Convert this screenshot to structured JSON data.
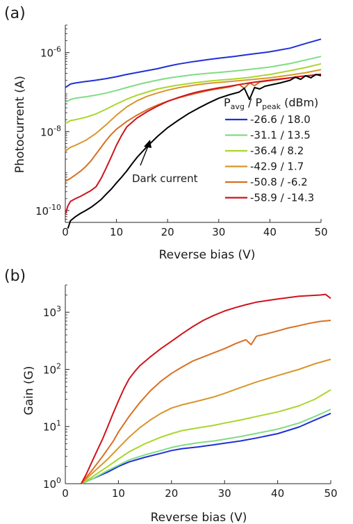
{
  "chart_data": [
    {
      "panel_label": "(a)",
      "type": "line",
      "xlabel": "Reverse bias (V)",
      "ylabel": "Photocurrent (A)",
      "xlim": [
        0,
        50
      ],
      "ylim": [
        5e-11,
        5e-06
      ],
      "yscale": "log",
      "x_ticks": [
        "0",
        "10",
        "20",
        "30",
        "40",
        "50"
      ],
      "y_ticks": [
        {
          "value": 1e-10,
          "base": "10",
          "exp": "-10"
        },
        {
          "value": 1e-08,
          "base": "10",
          "exp": "-8"
        },
        {
          "value": 1e-06,
          "base": "10",
          "exp": "-6"
        }
      ],
      "grid": false,
      "legend": {
        "position": "right",
        "title_main": "P",
        "title_sub1": "avg",
        "title_mid": " / P",
        "title_sub2": "peak",
        "title_unit": " (dBm)"
      },
      "series": [
        {
          "name": "-26.6 / 18.0",
          "color": "#1f2fd6",
          "x": [
            0,
            1,
            2,
            4,
            6,
            8,
            10,
            12,
            15,
            18,
            20,
            22,
            25,
            28,
            30,
            33,
            36,
            40,
            44,
            47,
            50
          ],
          "y": [
            1.3e-07,
            1.6e-07,
            1.7e-07,
            1.85e-07,
            2e-07,
            2.2e-07,
            2.45e-07,
            2.8e-07,
            3.3e-07,
            3.9e-07,
            4.5e-07,
            5.1e-07,
            5.9e-07,
            6.7e-07,
            7.2e-07,
            8e-07,
            9e-07,
            1.05e-06,
            1.3e-06,
            1.7e-06,
            2.2e-06
          ]
        },
        {
          "name": "-31.1 / 13.5",
          "color": "#7fdc84",
          "x": [
            0,
            1,
            2,
            4,
            6,
            8,
            10,
            12,
            15,
            18,
            20,
            22,
            25,
            28,
            30,
            33,
            36,
            40,
            44,
            47,
            50
          ],
          "y": [
            5.5e-08,
            6.5e-08,
            7e-08,
            7.6e-08,
            8.4e-08,
            9.5e-08,
            1.1e-07,
            1.3e-07,
            1.65e-07,
            2e-07,
            2.25e-07,
            2.45e-07,
            2.75e-07,
            3e-07,
            3.15e-07,
            3.4e-07,
            3.75e-07,
            4.3e-07,
            5.3e-07,
            6.5e-07,
            8e-07
          ]
        },
        {
          "name": "-36.4 / 8.2",
          "color": "#a9d62b",
          "x": [
            0,
            1,
            2,
            4,
            6,
            8,
            10,
            12,
            14,
            16,
            18,
            20,
            22,
            25,
            28,
            30,
            33,
            36,
            40,
            44,
            47,
            50
          ],
          "y": [
            1.6e-08,
            1.9e-08,
            2e-08,
            2.3e-08,
            2.8e-08,
            3.7e-08,
            5e-08,
            6.6e-08,
            8.3e-08,
            1e-07,
            1.2e-07,
            1.35e-07,
            1.5e-07,
            1.7e-07,
            1.9e-07,
            2e-07,
            2.15e-07,
            2.35e-07,
            2.8e-07,
            3.5e-07,
            4.2e-07,
            5.2e-07
          ]
        },
        {
          "name": "-42.9 / 1.7",
          "color": "#d9952a",
          "x": [
            0,
            1,
            2,
            4,
            6,
            8,
            10,
            12,
            14,
            16,
            18,
            20,
            22,
            24,
            26,
            28,
            30,
            33,
            36,
            40,
            44,
            47,
            50
          ],
          "y": [
            3.2e-09,
            4e-09,
            4.5e-09,
            6e-09,
            9e-09,
            1.5e-08,
            2.6e-08,
            4.2e-08,
            6e-08,
            7.8e-08,
            9.5e-08,
            1.12e-07,
            1.28e-07,
            1.42e-07,
            1.55e-07,
            1.67e-07,
            1.76e-07,
            1.9e-07,
            2.05e-07,
            2.3e-07,
            2.7e-07,
            3.1e-07,
            3.7e-07
          ]
        },
        {
          "name": "-50.8 / -6.2",
          "color": "#d86f22",
          "x": [
            0,
            1,
            2,
            3,
            4,
            5,
            6,
            7,
            8,
            9,
            10,
            12,
            14,
            16,
            18,
            20,
            22,
            24,
            26,
            28,
            30,
            32,
            34,
            35,
            36,
            37,
            38,
            40,
            42,
            44,
            46,
            48,
            50
          ],
          "y": [
            5.5e-10,
            6.5e-10,
            8e-10,
            1e-09,
            1.3e-09,
            1.8e-09,
            2.7e-09,
            4e-09,
            6e-09,
            8.5e-09,
            1.15e-08,
            1.8e-08,
            2.6e-08,
            3.6e-08,
            4.7e-08,
            5.9e-08,
            7.1e-08,
            8.3e-08,
            9.6e-08,
            1.1e-07,
            1.22e-07,
            1.34e-07,
            1.55e-07,
            1.25e-07,
            1.7e-07,
            1.45e-07,
            1.8e-07,
            1.95e-07,
            2.1e-07,
            2.3e-07,
            2.5e-07,
            2.65e-07,
            2.85e-07
          ]
        },
        {
          "name": "-58.9 / -14.3",
          "color": "#d0121b",
          "x": [
            0,
            0.5,
            1,
            2,
            3,
            4,
            5,
            6,
            7,
            8,
            9,
            10,
            11,
            12,
            14,
            16,
            18,
            20,
            22,
            24,
            26,
            28,
            30,
            32,
            34,
            36,
            38,
            40,
            42,
            44,
            46,
            48,
            50
          ],
          "y": [
            8e-11,
            1.3e-10,
            1.7e-10,
            2e-10,
            2.3e-10,
            2.7e-10,
            3.2e-10,
            4e-10,
            6.5e-10,
            1.2e-09,
            2.3e-09,
            4.5e-09,
            8e-09,
            1.3e-08,
            2.2e-08,
            3.2e-08,
            4.4e-08,
            5.8e-08,
            7.2e-08,
            8.7e-08,
            1.02e-07,
            1.15e-07,
            1.28e-07,
            1.4e-07,
            1.55e-07,
            1.7e-07,
            1.85e-07,
            2e-07,
            2.15e-07,
            2.3e-07,
            2.5e-07,
            2.65e-07,
            2.85e-07
          ]
        },
        {
          "name": "Dark current",
          "color": "#000000",
          "x": [
            0.5,
            1,
            2,
            3,
            4,
            5,
            6,
            7,
            8,
            9,
            10,
            11,
            12,
            13,
            14,
            16,
            18,
            20,
            22,
            24,
            26,
            28,
            30,
            32,
            34,
            35,
            36,
            37,
            38,
            39,
            40,
            42,
            44,
            45,
            46,
            47,
            48,
            49,
            50
          ],
          "y": [
            3.5e-11,
            5.5e-11,
            7e-11,
            8.5e-11,
            1e-10,
            1.2e-10,
            1.5e-10,
            1.9e-10,
            2.6e-10,
            3.5e-10,
            5e-10,
            7e-10,
            1e-09,
            1.5e-09,
            2.2e-09,
            4.2e-09,
            7.5e-09,
            1.25e-08,
            1.9e-08,
            2.8e-08,
            3.9e-08,
            5.3e-08,
            7e-08,
            8.5e-08,
            1e-07,
            1.25e-07,
            6.5e-08,
            1.3e-07,
            1.2e-07,
            1.4e-07,
            1.5e-07,
            1.7e-07,
            2e-07,
            2.4e-07,
            2.1e-07,
            2.6e-07,
            2.3e-07,
            2.8e-07,
            2.6e-07
          ]
        }
      ],
      "annotations": [
        {
          "text": "Dark current",
          "points_to_x": 17,
          "points_to_y": 6e-09
        }
      ]
    },
    {
      "panel_label": "(b)",
      "type": "line",
      "xlabel": "Reverse bias (V)",
      "ylabel": "Gain (G)",
      "xlim": [
        0,
        50
      ],
      "ylim": [
        1,
        3000
      ],
      "yscale": "log",
      "x_ticks": [
        "0",
        "10",
        "20",
        "30",
        "40",
        "50"
      ],
      "y_ticks": [
        {
          "value": 1,
          "base": "10",
          "exp": "0"
        },
        {
          "value": 10,
          "base": "10",
          "exp": "1"
        },
        {
          "value": 100,
          "base": "10",
          "exp": "2"
        },
        {
          "value": 1000,
          "base": "10",
          "exp": "3"
        }
      ],
      "grid": false,
      "series": [
        {
          "color": "#1f2fd6",
          "x": [
            3,
            5,
            8,
            10,
            12,
            15,
            18,
            20,
            22,
            25,
            28,
            30,
            33,
            36,
            40,
            44,
            47,
            50
          ],
          "y": [
            1.0,
            1.2,
            1.6,
            2.0,
            2.4,
            2.9,
            3.4,
            3.8,
            4.1,
            4.4,
            4.8,
            5.1,
            5.6,
            6.3,
            7.5,
            9.8,
            13.0,
            17.0
          ]
        },
        {
          "color": "#7fdc84",
          "x": [
            3,
            5,
            8,
            10,
            12,
            15,
            18,
            20,
            22,
            25,
            28,
            30,
            33,
            36,
            40,
            44,
            47,
            50
          ],
          "y": [
            1.0,
            1.2,
            1.7,
            2.1,
            2.6,
            3.2,
            3.8,
            4.3,
            4.7,
            5.2,
            5.6,
            6.0,
            6.7,
            7.6,
            9.0,
            11.5,
            15.0,
            20.0
          ]
        },
        {
          "color": "#a9d62b",
          "x": [
            3,
            5,
            8,
            10,
            12,
            15,
            18,
            20,
            22,
            25,
            28,
            30,
            33,
            36,
            40,
            44,
            47,
            50
          ],
          "y": [
            1.0,
            1.3,
            2.0,
            2.7,
            3.6,
            5.0,
            6.5,
            7.5,
            8.5,
            9.5,
            10.5,
            11.5,
            13.0,
            15.0,
            18.0,
            23.0,
            30.0,
            44.0
          ]
        },
        {
          "color": "#d9952a",
          "x": [
            3,
            5,
            8,
            10,
            12,
            14,
            16,
            18,
            20,
            22,
            25,
            28,
            30,
            33,
            36,
            40,
            44,
            47,
            50
          ],
          "y": [
            1.0,
            1.5,
            2.7,
            4.2,
            6.5,
            9.5,
            13.0,
            17.0,
            21.0,
            24.0,
            28.0,
            33.0,
            38.0,
            48.0,
            60.0,
            78.0,
            100.0,
            125.0,
            150.0
          ]
        },
        {
          "color": "#d86f22",
          "x": [
            3,
            5,
            7,
            9,
            10,
            12,
            14,
            16,
            18,
            20,
            22,
            24,
            26,
            28,
            30,
            32,
            34,
            35,
            36,
            38,
            40,
            42,
            44,
            46,
            48,
            50
          ],
          "y": [
            1.0,
            1.7,
            3.0,
            5.5,
            8.0,
            15.0,
            26.0,
            42.0,
            62.0,
            85.0,
            110.0,
            140.0,
            165.0,
            195.0,
            230.0,
            280.0,
            330.0,
            270.0,
            380.0,
            420.0,
            470.0,
            530.0,
            580.0,
            640.0,
            690.0,
            720.0
          ]
        },
        {
          "color": "#d0121b",
          "x": [
            3,
            4,
            5,
            6,
            7,
            8,
            9,
            10,
            11,
            12,
            13,
            14,
            16,
            18,
            20,
            22,
            24,
            26,
            28,
            30,
            32,
            34,
            36,
            38,
            40,
            42,
            44,
            46,
            48,
            49,
            50
          ],
          "y": [
            1.0,
            1.5,
            2.4,
            3.8,
            6.0,
            10.0,
            17.0,
            28.0,
            45.0,
            68.0,
            90.0,
            115.0,
            165.0,
            230.0,
            310.0,
            420.0,
            560.0,
            720.0,
            880.0,
            1050.0,
            1200.0,
            1350.0,
            1500.0,
            1600.0,
            1700.0,
            1800.0,
            1900.0,
            1950.0,
            2000.0,
            2050.0,
            1750.0
          ]
        }
      ]
    }
  ]
}
